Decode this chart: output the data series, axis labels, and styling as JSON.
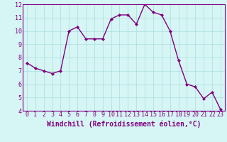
{
  "x": [
    0,
    1,
    2,
    3,
    4,
    5,
    6,
    7,
    8,
    9,
    10,
    11,
    12,
    13,
    14,
    15,
    16,
    17,
    18,
    19,
    20,
    21,
    22,
    23
  ],
  "y": [
    7.6,
    7.2,
    7.0,
    6.8,
    7.0,
    10.0,
    10.3,
    9.4,
    9.4,
    9.4,
    10.9,
    11.2,
    11.2,
    10.5,
    12.0,
    11.4,
    11.2,
    10.0,
    7.8,
    6.0,
    5.8,
    4.9,
    5.4,
    4.1
  ],
  "line_color": "#800080",
  "marker": "D",
  "marker_size": 2,
  "bg_color": "#d6f5f5",
  "grid_color": "#aadddd",
  "xlabel": "Windchill (Refroidissement éolien,°C)",
  "xlim_min": -0.5,
  "xlim_max": 23.5,
  "ylim_min": 4,
  "ylim_max": 12,
  "yticks": [
    4,
    5,
    6,
    7,
    8,
    9,
    10,
    11,
    12
  ],
  "xticks": [
    0,
    1,
    2,
    3,
    4,
    5,
    6,
    7,
    8,
    9,
    10,
    11,
    12,
    13,
    14,
    15,
    16,
    17,
    18,
    19,
    20,
    21,
    22,
    23
  ],
  "tick_fontsize": 6,
  "label_fontsize": 7,
  "line_width": 1.0,
  "fig_width": 3.2,
  "fig_height": 2.0,
  "dpi": 100
}
